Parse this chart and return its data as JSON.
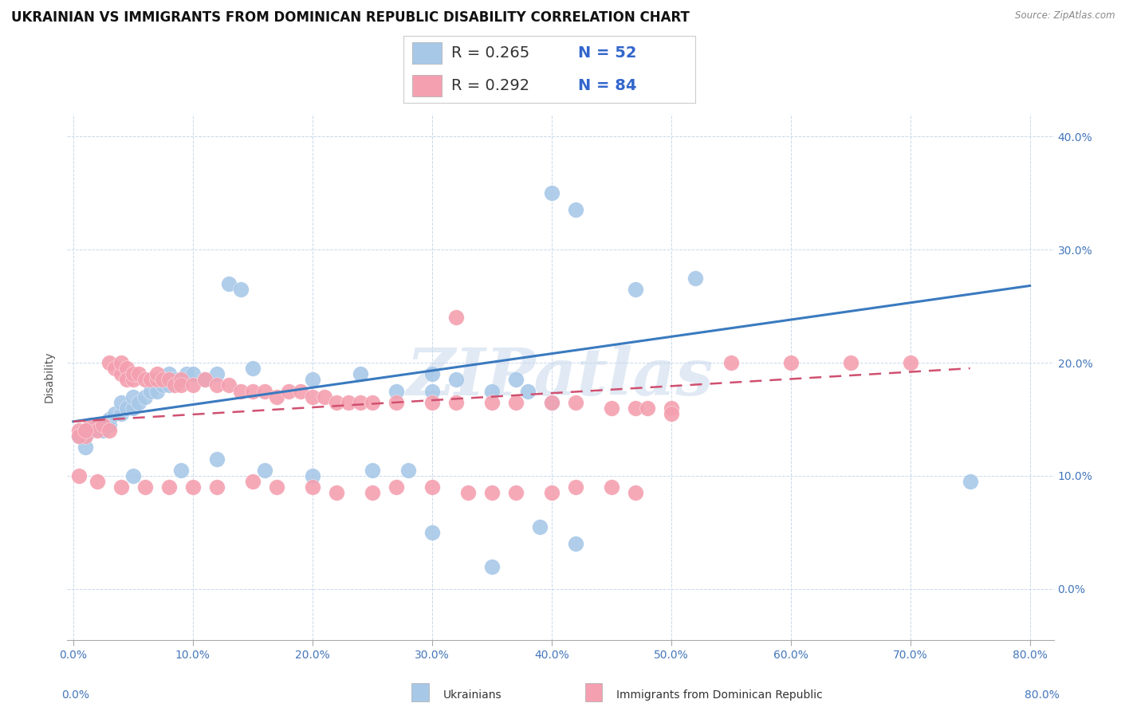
{
  "title": "UKRAINIAN VS IMMIGRANTS FROM DOMINICAN REPUBLIC DISABILITY CORRELATION CHART",
  "source": "Source: ZipAtlas.com",
  "ylabel": "Disability",
  "xlim": [
    -0.005,
    0.82
  ],
  "ylim": [
    -0.045,
    0.42
  ],
  "yticks": [
    0.0,
    0.1,
    0.2,
    0.3,
    0.4
  ],
  "xticks": [
    0.0,
    0.1,
    0.2,
    0.3,
    0.4,
    0.5,
    0.6,
    0.7,
    0.8
  ],
  "legend_blue_label": "Ukrainians",
  "legend_pink_label": "Immigrants from Dominican Republic",
  "blue_color": "#a8c8e8",
  "pink_color": "#f4a0b0",
  "blue_line_color": "#3a7abf",
  "pink_line_color": "#d05070",
  "blue_scatter": [
    [
      0.005,
      0.135
    ],
    [
      0.01,
      0.135
    ],
    [
      0.015,
      0.14
    ],
    [
      0.02,
      0.145
    ],
    [
      0.025,
      0.14
    ],
    [
      0.03,
      0.145
    ],
    [
      0.03,
      0.15
    ],
    [
      0.035,
      0.155
    ],
    [
      0.04,
      0.155
    ],
    [
      0.04,
      0.165
    ],
    [
      0.045,
      0.16
    ],
    [
      0.05,
      0.16
    ],
    [
      0.05,
      0.17
    ],
    [
      0.055,
      0.165
    ],
    [
      0.06,
      0.17
    ],
    [
      0.065,
      0.175
    ],
    [
      0.07,
      0.175
    ],
    [
      0.07,
      0.185
    ],
    [
      0.075,
      0.18
    ],
    [
      0.08,
      0.18
    ],
    [
      0.08,
      0.19
    ],
    [
      0.085,
      0.185
    ],
    [
      0.09,
      0.185
    ],
    [
      0.095,
      0.19
    ],
    [
      0.1,
      0.19
    ],
    [
      0.11,
      0.185
    ],
    [
      0.12,
      0.19
    ],
    [
      0.13,
      0.27
    ],
    [
      0.14,
      0.265
    ],
    [
      0.15,
      0.195
    ],
    [
      0.2,
      0.185
    ],
    [
      0.24,
      0.19
    ],
    [
      0.27,
      0.175
    ],
    [
      0.3,
      0.19
    ],
    [
      0.3,
      0.175
    ],
    [
      0.32,
      0.185
    ],
    [
      0.35,
      0.175
    ],
    [
      0.37,
      0.185
    ],
    [
      0.38,
      0.175
    ],
    [
      0.4,
      0.165
    ],
    [
      0.4,
      0.35
    ],
    [
      0.42,
      0.335
    ],
    [
      0.47,
      0.265
    ],
    [
      0.52,
      0.275
    ],
    [
      0.005,
      0.135
    ],
    [
      0.01,
      0.125
    ],
    [
      0.05,
      0.1
    ],
    [
      0.09,
      0.105
    ],
    [
      0.12,
      0.115
    ],
    [
      0.16,
      0.105
    ],
    [
      0.2,
      0.1
    ],
    [
      0.25,
      0.105
    ],
    [
      0.28,
      0.105
    ],
    [
      0.75,
      0.095
    ],
    [
      0.3,
      0.05
    ],
    [
      0.39,
      0.055
    ],
    [
      0.35,
      0.02
    ],
    [
      0.42,
      0.04
    ]
  ],
  "pink_scatter": [
    [
      0.005,
      0.14
    ],
    [
      0.01,
      0.135
    ],
    [
      0.015,
      0.145
    ],
    [
      0.02,
      0.14
    ],
    [
      0.025,
      0.145
    ],
    [
      0.03,
      0.14
    ],
    [
      0.03,
      0.2
    ],
    [
      0.035,
      0.195
    ],
    [
      0.04,
      0.19
    ],
    [
      0.04,
      0.2
    ],
    [
      0.045,
      0.195
    ],
    [
      0.045,
      0.185
    ],
    [
      0.05,
      0.185
    ],
    [
      0.05,
      0.19
    ],
    [
      0.055,
      0.19
    ],
    [
      0.06,
      0.185
    ],
    [
      0.065,
      0.185
    ],
    [
      0.07,
      0.185
    ],
    [
      0.07,
      0.19
    ],
    [
      0.075,
      0.185
    ],
    [
      0.08,
      0.185
    ],
    [
      0.085,
      0.18
    ],
    [
      0.09,
      0.185
    ],
    [
      0.09,
      0.18
    ],
    [
      0.1,
      0.18
    ],
    [
      0.11,
      0.185
    ],
    [
      0.12,
      0.18
    ],
    [
      0.13,
      0.18
    ],
    [
      0.14,
      0.175
    ],
    [
      0.15,
      0.175
    ],
    [
      0.16,
      0.175
    ],
    [
      0.17,
      0.17
    ],
    [
      0.18,
      0.175
    ],
    [
      0.19,
      0.175
    ],
    [
      0.2,
      0.17
    ],
    [
      0.21,
      0.17
    ],
    [
      0.22,
      0.165
    ],
    [
      0.23,
      0.165
    ],
    [
      0.24,
      0.165
    ],
    [
      0.25,
      0.165
    ],
    [
      0.27,
      0.165
    ],
    [
      0.3,
      0.165
    ],
    [
      0.32,
      0.165
    ],
    [
      0.35,
      0.165
    ],
    [
      0.37,
      0.165
    ],
    [
      0.4,
      0.165
    ],
    [
      0.42,
      0.165
    ],
    [
      0.45,
      0.16
    ],
    [
      0.47,
      0.16
    ],
    [
      0.5,
      0.16
    ],
    [
      0.55,
      0.2
    ],
    [
      0.6,
      0.2
    ],
    [
      0.65,
      0.2
    ],
    [
      0.7,
      0.2
    ],
    [
      0.32,
      0.24
    ],
    [
      0.005,
      0.1
    ],
    [
      0.02,
      0.095
    ],
    [
      0.04,
      0.09
    ],
    [
      0.06,
      0.09
    ],
    [
      0.08,
      0.09
    ],
    [
      0.1,
      0.09
    ],
    [
      0.12,
      0.09
    ],
    [
      0.15,
      0.095
    ],
    [
      0.17,
      0.09
    ],
    [
      0.2,
      0.09
    ],
    [
      0.22,
      0.085
    ],
    [
      0.25,
      0.085
    ],
    [
      0.27,
      0.09
    ],
    [
      0.3,
      0.09
    ],
    [
      0.33,
      0.085
    ],
    [
      0.35,
      0.085
    ],
    [
      0.37,
      0.085
    ],
    [
      0.4,
      0.085
    ],
    [
      0.42,
      0.09
    ],
    [
      0.45,
      0.09
    ],
    [
      0.47,
      0.085
    ],
    [
      0.48,
      0.16
    ],
    [
      0.5,
      0.155
    ],
    [
      0.005,
      0.135
    ],
    [
      0.01,
      0.14
    ]
  ],
  "blue_line_x": [
    0.0,
    0.8
  ],
  "blue_line_y": [
    0.148,
    0.268
  ],
  "pink_line_x": [
    0.0,
    0.75
  ],
  "pink_line_y": [
    0.148,
    0.195
  ],
  "watermark": "ZIPatlas",
  "bg_color": "#ffffff",
  "grid_color": "#c8d8ec",
  "title_fontsize": 12,
  "label_fontsize": 10,
  "tick_color": "#4477bb"
}
